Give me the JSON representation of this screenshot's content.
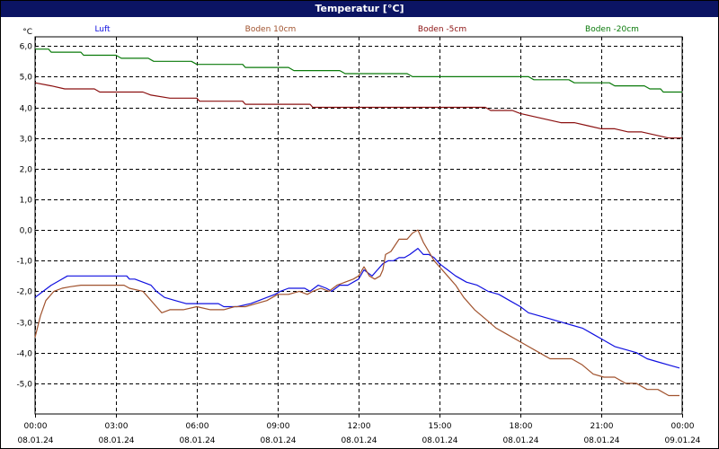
{
  "title": "Temperatur [°C]",
  "chart_data": {
    "type": "line",
    "title": "Temperatur [°C]",
    "ylabel": "°C",
    "ylim": [
      -6.0,
      6.3
    ],
    "xlim_hours": [
      0,
      24
    ],
    "yticks": [
      "6,0",
      "5,0",
      "4,0",
      "3,0",
      "2,0",
      "1,0",
      "0,0",
      "-1,0",
      "-2,0",
      "-3,0",
      "-4,0",
      "-5,0"
    ],
    "ytick_values": [
      6,
      5,
      4,
      3,
      2,
      1,
      0,
      -1,
      -2,
      -3,
      -4,
      -5
    ],
    "xticks": [
      {
        "time": "00:00",
        "date": "08.01.24",
        "hour": 0
      },
      {
        "time": "03:00",
        "date": "08.01.24",
        "hour": 3
      },
      {
        "time": "06:00",
        "date": "08.01.24",
        "hour": 6
      },
      {
        "time": "09:00",
        "date": "08.01.24",
        "hour": 9
      },
      {
        "time": "12:00",
        "date": "08.01.24",
        "hour": 12
      },
      {
        "time": "15:00",
        "date": "08.01.24",
        "hour": 15
      },
      {
        "time": "18:00",
        "date": "08.01.24",
        "hour": 18
      },
      {
        "time": "21:00",
        "date": "08.01.24",
        "hour": 21
      },
      {
        "time": "00:00",
        "date": "09.01.24",
        "hour": 24
      }
    ],
    "grid": true,
    "legend_position": "top",
    "series": [
      {
        "name": "Luft",
        "color": "#1010e0",
        "points": [
          [
            0,
            -2.2
          ],
          [
            0.3,
            -2.0
          ],
          [
            0.6,
            -1.8
          ],
          [
            0.9,
            -1.65
          ],
          [
            1.2,
            -1.5
          ],
          [
            3.4,
            -1.5
          ],
          [
            3.5,
            -1.6
          ],
          [
            3.7,
            -1.6
          ],
          [
            4.0,
            -1.7
          ],
          [
            4.3,
            -1.8
          ],
          [
            4.5,
            -2.0
          ],
          [
            4.8,
            -2.2
          ],
          [
            5.2,
            -2.3
          ],
          [
            5.6,
            -2.4
          ],
          [
            6.8,
            -2.4
          ],
          [
            7.0,
            -2.5
          ],
          [
            7.5,
            -2.5
          ],
          [
            8.0,
            -2.4
          ],
          [
            8.3,
            -2.3
          ],
          [
            8.6,
            -2.2
          ],
          [
            8.9,
            -2.1
          ],
          [
            9.1,
            -2.0
          ],
          [
            9.4,
            -1.9
          ],
          [
            10.0,
            -1.9
          ],
          [
            10.2,
            -2.0
          ],
          [
            10.5,
            -1.8
          ],
          [
            10.8,
            -1.9
          ],
          [
            11.0,
            -2.0
          ],
          [
            11.3,
            -1.8
          ],
          [
            11.6,
            -1.8
          ],
          [
            12.0,
            -1.6
          ],
          [
            12.2,
            -1.3
          ],
          [
            12.5,
            -1.5
          ],
          [
            12.7,
            -1.3
          ],
          [
            12.9,
            -1.1
          ],
          [
            13.1,
            -1.0
          ],
          [
            13.3,
            -1.0
          ],
          [
            13.5,
            -0.9
          ],
          [
            13.7,
            -0.9
          ],
          [
            13.9,
            -0.8
          ],
          [
            14.2,
            -0.6
          ],
          [
            14.4,
            -0.8
          ],
          [
            14.6,
            -0.8
          ],
          [
            14.8,
            -0.9
          ],
          [
            15.0,
            -1.1
          ],
          [
            15.3,
            -1.3
          ],
          [
            15.6,
            -1.5
          ],
          [
            16.0,
            -1.7
          ],
          [
            16.4,
            -1.8
          ],
          [
            16.8,
            -2.0
          ],
          [
            17.2,
            -2.1
          ],
          [
            17.6,
            -2.3
          ],
          [
            18.0,
            -2.5
          ],
          [
            18.3,
            -2.7
          ],
          [
            18.7,
            -2.8
          ],
          [
            19.1,
            -2.9
          ],
          [
            19.5,
            -3.0
          ],
          [
            19.9,
            -3.1
          ],
          [
            20.3,
            -3.2
          ],
          [
            20.7,
            -3.4
          ],
          [
            21.1,
            -3.6
          ],
          [
            21.5,
            -3.8
          ],
          [
            21.9,
            -3.9
          ],
          [
            22.3,
            -4.0
          ],
          [
            22.7,
            -4.2
          ],
          [
            23.1,
            -4.3
          ],
          [
            23.5,
            -4.4
          ],
          [
            23.9,
            -4.5
          ]
        ]
      },
      {
        "name": "Boden 10cm",
        "color": "#a0522d",
        "points": [
          [
            0,
            -3.5
          ],
          [
            0.2,
            -2.8
          ],
          [
            0.4,
            -2.3
          ],
          [
            0.7,
            -2.0
          ],
          [
            1.0,
            -1.9
          ],
          [
            1.3,
            -1.85
          ],
          [
            1.7,
            -1.8
          ],
          [
            3.3,
            -1.8
          ],
          [
            3.5,
            -1.9
          ],
          [
            4.0,
            -2.0
          ],
          [
            4.2,
            -2.2
          ],
          [
            4.5,
            -2.5
          ],
          [
            4.7,
            -2.7
          ],
          [
            5.0,
            -2.6
          ],
          [
            5.5,
            -2.6
          ],
          [
            6.0,
            -2.5
          ],
          [
            6.5,
            -2.6
          ],
          [
            7.0,
            -2.6
          ],
          [
            7.4,
            -2.5
          ],
          [
            7.8,
            -2.5
          ],
          [
            8.2,
            -2.4
          ],
          [
            8.6,
            -2.3
          ],
          [
            9.0,
            -2.1
          ],
          [
            9.4,
            -2.1
          ],
          [
            9.8,
            -2.0
          ],
          [
            10.1,
            -2.1
          ],
          [
            10.3,
            -2.0
          ],
          [
            10.6,
            -1.9
          ],
          [
            10.9,
            -2.0
          ],
          [
            11.2,
            -1.8
          ],
          [
            11.5,
            -1.7
          ],
          [
            11.8,
            -1.6
          ],
          [
            12.0,
            -1.5
          ],
          [
            12.2,
            -1.2
          ],
          [
            12.4,
            -1.5
          ],
          [
            12.6,
            -1.6
          ],
          [
            12.8,
            -1.5
          ],
          [
            12.9,
            -1.3
          ],
          [
            13.0,
            -0.8
          ],
          [
            13.2,
            -0.7
          ],
          [
            13.5,
            -0.3
          ],
          [
            13.8,
            -0.3
          ],
          [
            14.0,
            -0.1
          ],
          [
            14.2,
            0.0
          ],
          [
            14.4,
            -0.4
          ],
          [
            14.6,
            -0.7
          ],
          [
            14.8,
            -1.0
          ],
          [
            15.0,
            -1.2
          ],
          [
            15.3,
            -1.5
          ],
          [
            15.6,
            -1.8
          ],
          [
            15.9,
            -2.2
          ],
          [
            16.3,
            -2.6
          ],
          [
            16.7,
            -2.9
          ],
          [
            17.1,
            -3.2
          ],
          [
            17.5,
            -3.4
          ],
          [
            17.9,
            -3.6
          ],
          [
            18.3,
            -3.8
          ],
          [
            18.7,
            -4.0
          ],
          [
            19.1,
            -4.2
          ],
          [
            19.5,
            -4.2
          ],
          [
            19.9,
            -4.2
          ],
          [
            20.3,
            -4.4
          ],
          [
            20.7,
            -4.7
          ],
          [
            21.1,
            -4.8
          ],
          [
            21.5,
            -4.8
          ],
          [
            21.9,
            -5.0
          ],
          [
            22.3,
            -5.0
          ],
          [
            22.7,
            -5.2
          ],
          [
            23.1,
            -5.2
          ],
          [
            23.5,
            -5.4
          ],
          [
            23.9,
            -5.4
          ]
        ]
      },
      {
        "name": "Boden -5cm",
        "color": "#8b1010",
        "points": [
          [
            0,
            4.8
          ],
          [
            0.6,
            4.7
          ],
          [
            1.1,
            4.6
          ],
          [
            2.2,
            4.6
          ],
          [
            2.4,
            4.5
          ],
          [
            4.0,
            4.5
          ],
          [
            4.3,
            4.4
          ],
          [
            5.0,
            4.3
          ],
          [
            6.0,
            4.3
          ],
          [
            6.1,
            4.2
          ],
          [
            7.7,
            4.2
          ],
          [
            7.8,
            4.1
          ],
          [
            10.2,
            4.1
          ],
          [
            10.3,
            4.0
          ],
          [
            16.7,
            4.0
          ],
          [
            16.9,
            3.9
          ],
          [
            17.7,
            3.9
          ],
          [
            18.0,
            3.8
          ],
          [
            18.5,
            3.7
          ],
          [
            19.0,
            3.6
          ],
          [
            19.5,
            3.5
          ],
          [
            20.0,
            3.5
          ],
          [
            20.5,
            3.4
          ],
          [
            21.0,
            3.3
          ],
          [
            21.5,
            3.3
          ],
          [
            22.0,
            3.2
          ],
          [
            22.5,
            3.2
          ],
          [
            23.0,
            3.1
          ],
          [
            23.5,
            3.0
          ],
          [
            24.0,
            3.0
          ]
        ]
      },
      {
        "name": "Boden -20cm",
        "color": "#0a7a0a",
        "points": [
          [
            0,
            5.9
          ],
          [
            0.5,
            5.9
          ],
          [
            0.6,
            5.8
          ],
          [
            1.7,
            5.8
          ],
          [
            1.8,
            5.7
          ],
          [
            3.0,
            5.7
          ],
          [
            3.2,
            5.6
          ],
          [
            4.2,
            5.6
          ],
          [
            4.4,
            5.5
          ],
          [
            5.8,
            5.5
          ],
          [
            6.0,
            5.4
          ],
          [
            7.7,
            5.4
          ],
          [
            7.8,
            5.3
          ],
          [
            9.4,
            5.3
          ],
          [
            9.6,
            5.2
          ],
          [
            11.3,
            5.2
          ],
          [
            11.5,
            5.1
          ],
          [
            13.8,
            5.1
          ],
          [
            14.0,
            5.0
          ],
          [
            18.3,
            5.0
          ],
          [
            18.5,
            4.9
          ],
          [
            19.8,
            4.9
          ],
          [
            20.0,
            4.8
          ],
          [
            21.3,
            4.8
          ],
          [
            21.5,
            4.7
          ],
          [
            22.6,
            4.7
          ],
          [
            22.8,
            4.6
          ],
          [
            23.2,
            4.6
          ],
          [
            23.3,
            4.5
          ],
          [
            24.0,
            4.5
          ]
        ]
      }
    ]
  }
}
